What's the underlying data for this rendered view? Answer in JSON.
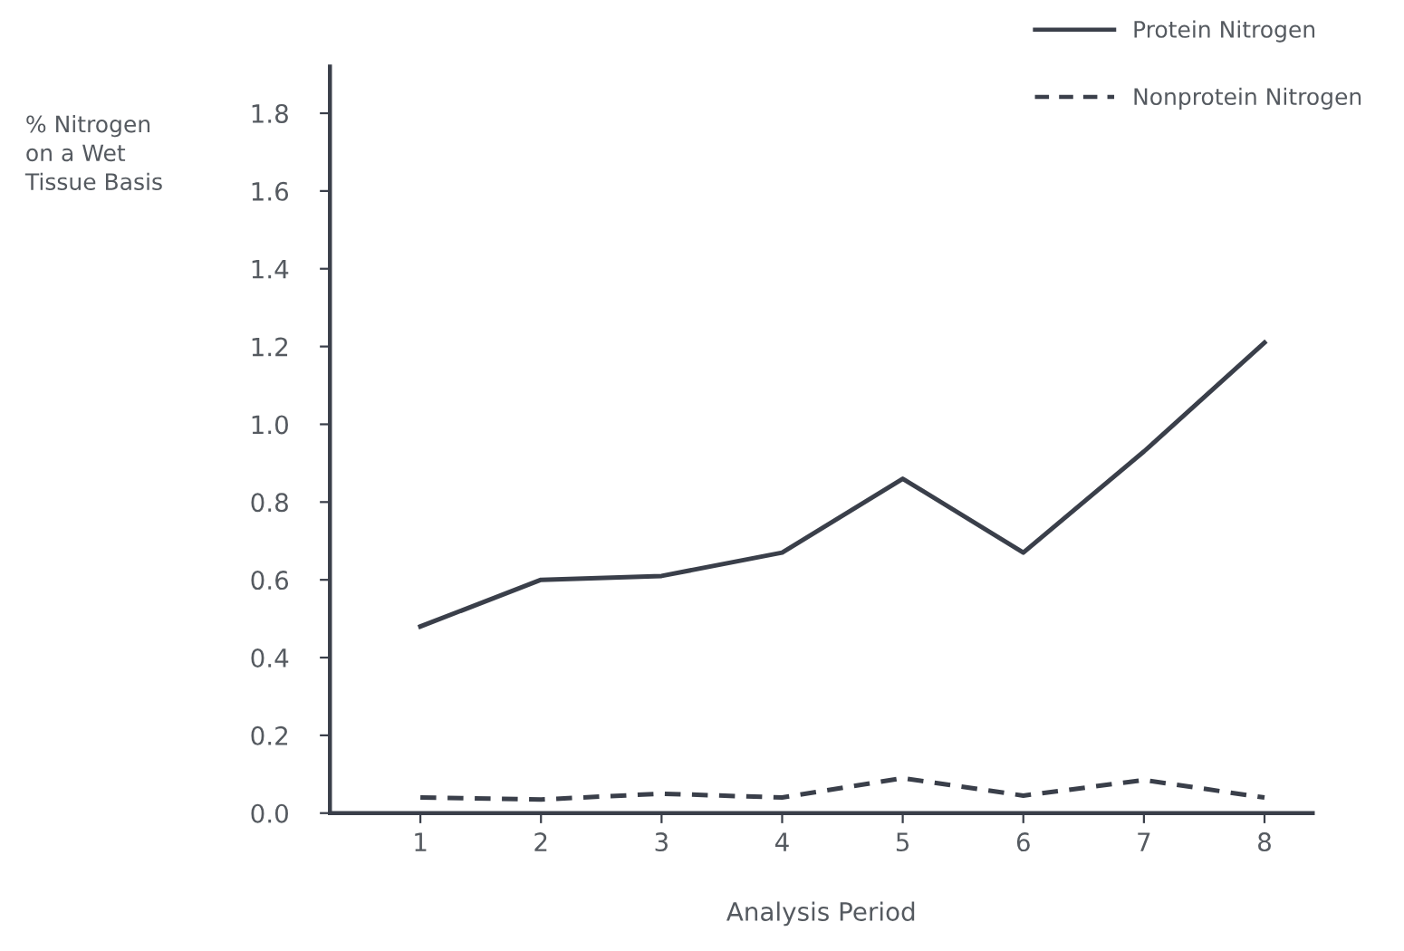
{
  "chart_data": {
    "type": "line",
    "xlabel": "Analysis Period",
    "ylabel": "% Nitrogen\non a Wet\nTissue Basis",
    "categories": [
      "1",
      "2",
      "3",
      "4",
      "5",
      "6",
      "7",
      "8"
    ],
    "series": [
      {
        "name": "Protein Nitrogen",
        "color": "#3a3f4a",
        "line_style": "solid",
        "values": [
          0.48,
          0.6,
          0.61,
          0.67,
          0.86,
          0.67,
          0.93,
          1.21
        ]
      },
      {
        "name": "Nonprotein Nitrogen",
        "color": "#3a3f4a",
        "line_style": "dashed",
        "values": [
          0.04,
          0.035,
          0.05,
          0.04,
          0.09,
          0.045,
          0.085,
          0.04
        ]
      }
    ],
    "ylim": [
      0,
      1.92
    ],
    "yticks": [
      {
        "value": 0,
        "label": "0.0"
      },
      0.2,
      0.4,
      0.6,
      0.8,
      {
        "value": 1,
        "label": "1.0"
      },
      1.2,
      1.4,
      1.6,
      1.8
    ],
    "grid": false,
    "legend": "top right",
    "marker": "none"
  }
}
